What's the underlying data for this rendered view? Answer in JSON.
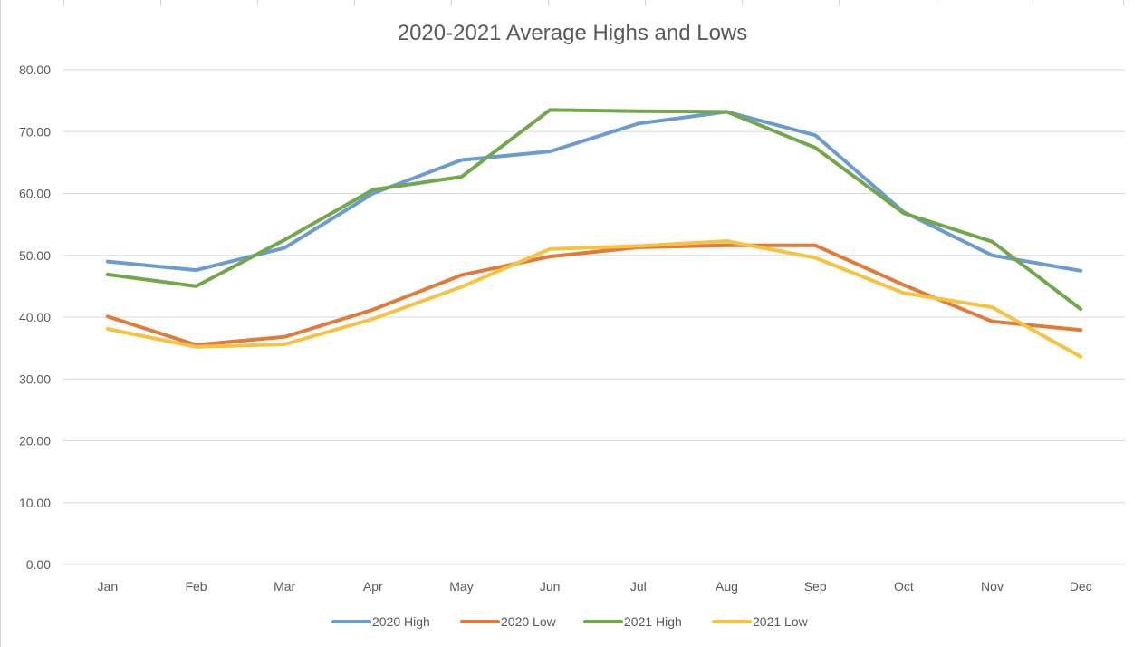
{
  "chart_data": {
    "type": "line",
    "title": "2020-2021 Average Highs and Lows",
    "xlabel": "",
    "ylabel": "",
    "categories": [
      "Jan",
      "Feb",
      "Mar",
      "Apr",
      "May",
      "Jun",
      "Jul",
      "Aug",
      "Sep",
      "Oct",
      "Nov",
      "Dec"
    ],
    "ylim": [
      0,
      80
    ],
    "yticks": [
      "0.00",
      "10.00",
      "20.00",
      "30.00",
      "40.00",
      "50.00",
      "60.00",
      "70.00",
      "80.00"
    ],
    "grid": true,
    "legend_position": "bottom",
    "series": [
      {
        "name": "2020 High",
        "color": "#6b9bd1",
        "values": [
          49.0,
          47.6,
          51.2,
          60.0,
          65.4,
          66.8,
          71.3,
          73.2,
          69.4,
          57.0,
          50.0,
          47.5
        ]
      },
      {
        "name": "2020 Low",
        "color": "#e07b39",
        "values": [
          40.1,
          35.5,
          36.8,
          41.2,
          46.8,
          49.8,
          51.3,
          51.6,
          51.6,
          45.2,
          39.3,
          37.9
        ]
      },
      {
        "name": "2021 High",
        "color": "#72a84b",
        "values": [
          46.9,
          45.0,
          52.5,
          60.6,
          62.7,
          73.5,
          73.3,
          73.2,
          67.4,
          56.8,
          52.2,
          41.3
        ]
      },
      {
        "name": "2021 Low",
        "color": "#f5c242",
        "values": [
          38.1,
          35.2,
          35.6,
          39.7,
          44.9,
          51.0,
          51.5,
          52.3,
          49.6,
          43.9,
          41.6,
          33.6
        ]
      }
    ]
  }
}
